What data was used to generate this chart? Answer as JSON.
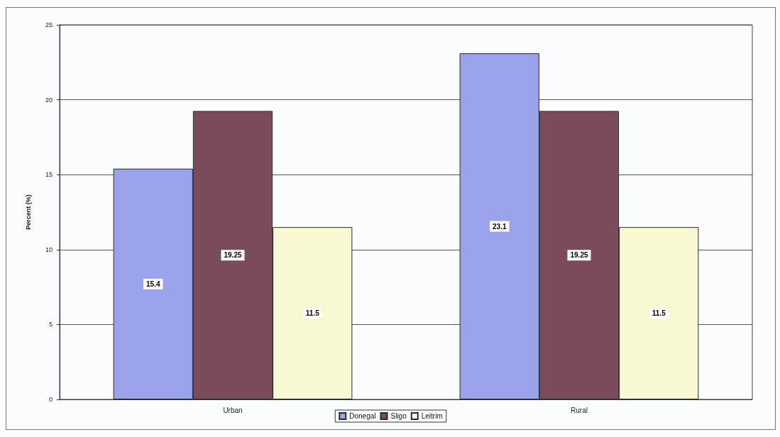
{
  "chart_data": {
    "type": "bar",
    "ylabel": "Percent (%)",
    "categories": [
      "Urban",
      "Rural"
    ],
    "series": [
      {
        "name": "Donegal",
        "color": "#9aa2ea",
        "values": [
          15.4,
          23.1
        ]
      },
      {
        "name": "Sligo",
        "color": "#7a4b5b",
        "values": [
          19.25,
          19.25
        ]
      },
      {
        "name": "Leitrim",
        "color": "#f8f8d2",
        "values": [
          11.5,
          11.5
        ]
      }
    ],
    "ylim": [
      0,
      25
    ],
    "yticks": [
      0,
      5,
      10,
      15,
      20,
      25
    ],
    "grid": "y",
    "legend": "bottom",
    "data_labels": true
  }
}
